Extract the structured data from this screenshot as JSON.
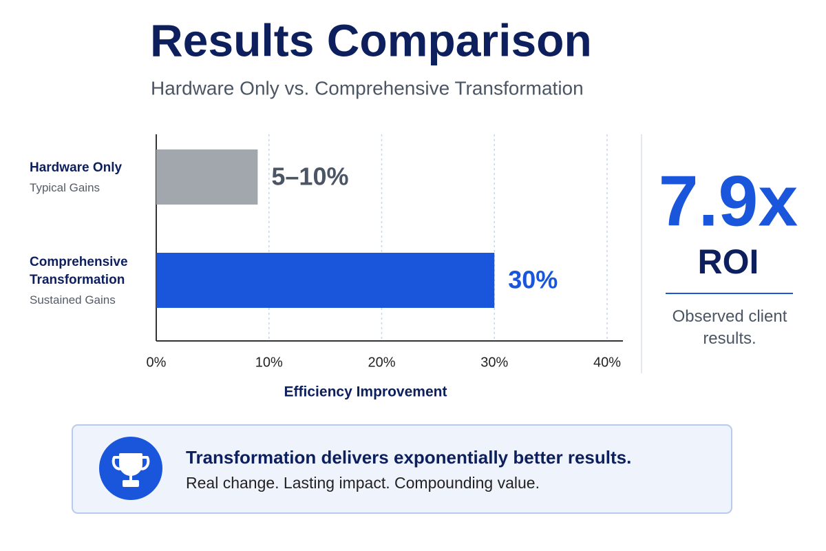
{
  "title": "Results Comparison",
  "subtitle": "Hardware Only vs. Comprehensive Transformation",
  "chart_data": {
    "type": "bar",
    "orientation": "horizontal",
    "categories": [
      "Hardware Only",
      "Comprehensive Transformation"
    ],
    "category_notes": [
      "Typical Gains",
      "Sustained Gains"
    ],
    "values": [
      9,
      30
    ],
    "value_labels": [
      "5–10%",
      "30%"
    ],
    "colors": [
      "#a2a7ae",
      "#1a56db"
    ],
    "label_colors": [
      "#4b5563",
      "#1a56db"
    ],
    "xlabel": "Efficiency Improvement",
    "xlim": [
      0,
      40
    ],
    "xticks": [
      {
        "value": 0,
        "label": "0%"
      },
      {
        "value": 10,
        "label": "10%"
      },
      {
        "value": 20,
        "label": "20%"
      },
      {
        "value": 30,
        "label": "30%"
      },
      {
        "value": 40,
        "label": "40%"
      }
    ],
    "grid": true
  },
  "stat": {
    "value": "7.9x",
    "label": "ROI",
    "note": "Observed client results."
  },
  "callout": {
    "heading": "Transformation delivers exponentially better results.",
    "text": "Real change. Lasting impact. Compounding value."
  }
}
